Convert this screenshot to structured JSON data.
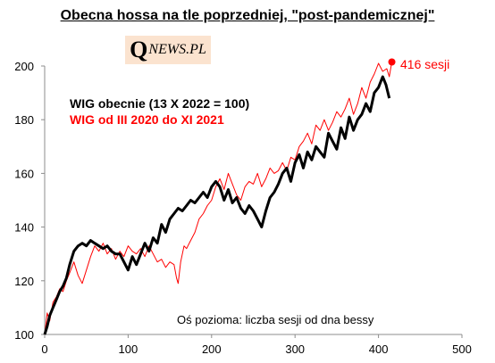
{
  "logo": {
    "letter": "Q",
    "rest": "NEWS.PL"
  },
  "chart_data": {
    "type": "line",
    "title": "Obecna hossa na tle poprzedniej, \"post-pandemicznej\"",
    "xlabel": "",
    "ylabel": "",
    "xlim": [
      0,
      500
    ],
    "ylim": [
      100,
      200
    ],
    "x_ticks": [
      "0",
      "100",
      "200",
      "300",
      "400",
      "500"
    ],
    "y_ticks": [
      "100",
      "120",
      "140",
      "160",
      "180",
      "200"
    ],
    "grid": false,
    "legend": {
      "placement": "top-left"
    },
    "annotation": "Oś pozioma: liczba sesji od dna bessy",
    "end_label": "416 sesji",
    "end_point": {
      "x": 416,
      "y": 201.5
    },
    "series": [
      {
        "name": "WIG obecnie (13 X 2022 = 100)",
        "color": "#000000",
        "x": [
          0,
          3,
          6,
          10,
          14,
          18,
          22,
          26,
          30,
          35,
          40,
          45,
          50,
          55,
          60,
          65,
          70,
          75,
          80,
          85,
          90,
          95,
          100,
          105,
          110,
          115,
          120,
          125,
          130,
          135,
          140,
          145,
          150,
          155,
          160,
          165,
          170,
          175,
          180,
          185,
          190,
          195,
          200,
          205,
          210,
          215,
          220,
          225,
          230,
          235,
          240,
          245,
          250,
          255,
          260,
          265,
          270,
          275,
          280,
          285,
          290,
          295,
          300,
          305,
          310,
          315,
          320,
          325,
          330,
          335,
          340,
          345,
          350,
          355,
          360,
          365,
          370,
          375,
          380,
          385,
          390,
          395,
          400,
          405,
          409,
          413
        ],
        "values": [
          100,
          103,
          107,
          110,
          113,
          116,
          118,
          121,
          126,
          131,
          133,
          134,
          133,
          135,
          134,
          133,
          132,
          133,
          131,
          130,
          130,
          127,
          124,
          129,
          126,
          130,
          134,
          131,
          136,
          134,
          141,
          138,
          143,
          145,
          147,
          146,
          148,
          150,
          149,
          151,
          153,
          151,
          155,
          157,
          155,
          150,
          154,
          149,
          151,
          147,
          145,
          148,
          146,
          143,
          140,
          146,
          151,
          153,
          156,
          160,
          162,
          157,
          164,
          167,
          162,
          168,
          165,
          170,
          168,
          166,
          175,
          172,
          169,
          177,
          173,
          181,
          176,
          180,
          182,
          186,
          183,
          190,
          192,
          196,
          193,
          188
        ]
      },
      {
        "name": "WIG od III 2020 do XI 2021",
        "color": "#ff0000",
        "x": [
          0,
          3,
          6,
          10,
          14,
          18,
          22,
          26,
          30,
          35,
          40,
          45,
          50,
          55,
          60,
          65,
          70,
          75,
          80,
          85,
          90,
          95,
          100,
          105,
          110,
          115,
          120,
          125,
          130,
          135,
          140,
          145,
          150,
          155,
          158,
          160,
          163,
          167,
          170,
          175,
          180,
          185,
          190,
          195,
          200,
          205,
          210,
          215,
          220,
          225,
          230,
          235,
          240,
          245,
          250,
          255,
          260,
          265,
          270,
          275,
          280,
          285,
          290,
          295,
          300,
          305,
          310,
          315,
          320,
          325,
          330,
          335,
          340,
          345,
          350,
          355,
          360,
          365,
          370,
          375,
          380,
          385,
          390,
          395,
          400,
          405,
          410,
          413,
          416
        ],
        "values": [
          100,
          108,
          105,
          112,
          114,
          117,
          116,
          120,
          123,
          127,
          122,
          119,
          124,
          129,
          133,
          131,
          134,
          130,
          132,
          128,
          131,
          129,
          133,
          131,
          130,
          132,
          129,
          133,
          130,
          127,
          128,
          125,
          127,
          126,
          121,
          119,
          127,
          133,
          132,
          135,
          138,
          143,
          145,
          148,
          150,
          155,
          158,
          154,
          160,
          156,
          152,
          150,
          155,
          157,
          156,
          160,
          155,
          158,
          162,
          160,
          161,
          164,
          161,
          166,
          165,
          170,
          172,
          175,
          171,
          178,
          176,
          180,
          176,
          179,
          183,
          181,
          184,
          188,
          182,
          186,
          192,
          188,
          194,
          197,
          201,
          198,
          199,
          196,
          201.5
        ]
      }
    ]
  }
}
